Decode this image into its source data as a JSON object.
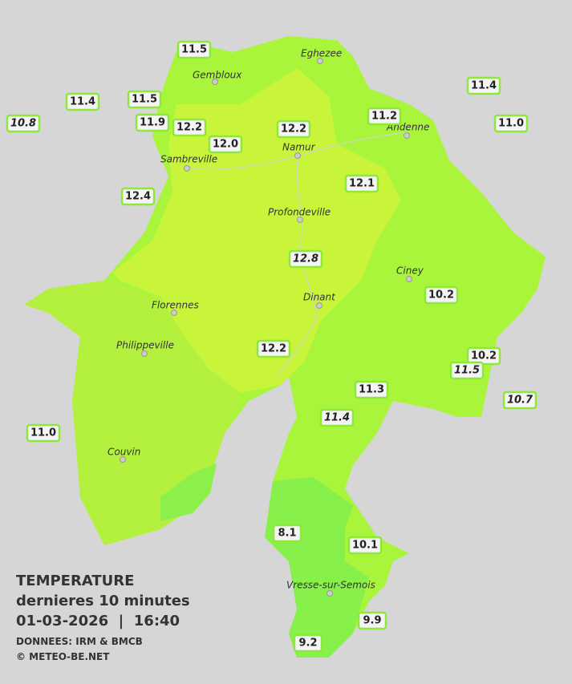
{
  "legend": {
    "title": "TEMPERATURE",
    "subtitle": "dernieres 10 minutes",
    "datetime": "01-03-2026  |  16:40",
    "source": "DONNEES: IRM & BMCB",
    "copyright": "© METEO-BE.NET"
  },
  "towns": [
    "Eghezee",
    "Gembloux",
    "Andenne",
    "Namur",
    "Sambreville",
    "Profondeville",
    "Ciney",
    "Dinant",
    "Florennes",
    "Philippeville",
    "Couvin",
    "Vresse-sur-Semois"
  ],
  "stations": [
    {
      "label": "11.5",
      "italic": false
    },
    {
      "label": "11.4",
      "italic": false
    },
    {
      "label": "11.5",
      "italic": false
    },
    {
      "label": "10.8",
      "italic": true
    },
    {
      "label": "11.9",
      "italic": false
    },
    {
      "label": "12.2",
      "italic": false
    },
    {
      "label": "12.0",
      "italic": false
    },
    {
      "label": "12.2",
      "italic": false
    },
    {
      "label": "11.2",
      "italic": false
    },
    {
      "label": "11.4",
      "italic": false
    },
    {
      "label": "11.0",
      "italic": false
    },
    {
      "label": "12.4",
      "italic": false
    },
    {
      "label": "12.1",
      "italic": false
    },
    {
      "label": "12.8",
      "italic": true
    },
    {
      "label": "10.2",
      "italic": false
    },
    {
      "label": "12.2",
      "italic": false
    },
    {
      "label": "10.2",
      "italic": false
    },
    {
      "label": "11.5",
      "italic": true
    },
    {
      "label": "11.3",
      "italic": false
    },
    {
      "label": "10.7",
      "italic": true
    },
    {
      "label": "11.4",
      "italic": true
    },
    {
      "label": "11.0",
      "italic": false
    },
    {
      "label": "8.1",
      "italic": false
    },
    {
      "label": "10.1",
      "italic": false
    },
    {
      "label": "9.9",
      "italic": false
    },
    {
      "label": "9.2",
      "italic": false
    }
  ]
}
